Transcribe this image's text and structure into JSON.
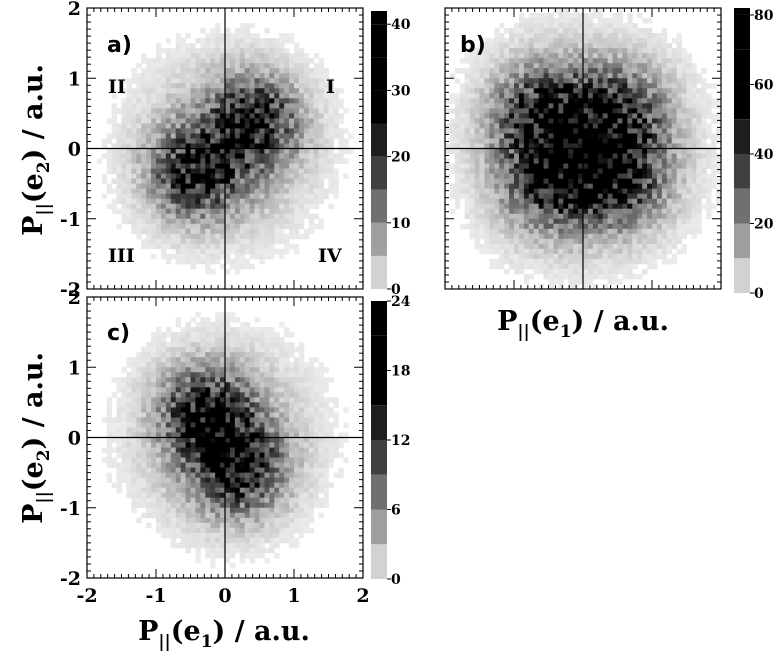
{
  "chart_data": [
    {
      "panel": "a)",
      "type": "heatmap",
      "xlim": [
        -2,
        2
      ],
      "ylim": [
        -2,
        2
      ],
      "x_ticks": [],
      "y_ticks": [
        "-2",
        "-1",
        "0",
        "1",
        "2"
      ],
      "xlabel": "",
      "ylabel": "P||(e2) / a.u.",
      "quadrant_labels": [
        "I",
        "II",
        "III",
        "IV"
      ],
      "colorbar": {
        "range": [
          0,
          42
        ],
        "ticks": [
          "0",
          "10",
          "20",
          "30",
          "40"
        ]
      },
      "peaks": [
        {
          "x": 0.45,
          "y": 0.4,
          "value": 40
        },
        {
          "x": -0.45,
          "y": -0.35,
          "value": 40
        }
      ],
      "distribution_spread": 0.8
    },
    {
      "panel": "b)",
      "type": "heatmap",
      "xlim": [
        -2,
        2
      ],
      "ylim": [
        -2,
        2
      ],
      "x_ticks": [],
      "y_ticks": [],
      "xlabel": "P||(e1) / a.u.",
      "ylabel": "",
      "colorbar": {
        "range": [
          0,
          82
        ],
        "ticks": [
          "0",
          "20",
          "40",
          "60",
          "80"
        ]
      },
      "peaks": [
        {
          "x": -0.6,
          "y": 0.5,
          "value": 75
        },
        {
          "x": 0.5,
          "y": -0.4,
          "value": 75
        },
        {
          "x": 0.5,
          "y": 0.5,
          "value": 65
        },
        {
          "x": -0.5,
          "y": -0.5,
          "value": 65
        }
      ],
      "distribution_spread": 0.9
    },
    {
      "panel": "c)",
      "type": "heatmap",
      "xlim": [
        -2,
        2
      ],
      "ylim": [
        -2,
        2
      ],
      "x_ticks": [
        "-2",
        "-1",
        "0",
        "1",
        "2"
      ],
      "y_ticks": [
        "-2",
        "-1",
        "0",
        "1",
        "2"
      ],
      "xlabel": "P||(e1) / a.u.",
      "ylabel": "P||(e2) / a.u.",
      "colorbar": {
        "range": [
          0,
          24
        ],
        "ticks": [
          "0",
          "6",
          "12",
          "18",
          "24"
        ]
      },
      "peaks": [
        {
          "x": -0.3,
          "y": 0.35,
          "value": 24
        },
        {
          "x": 0.2,
          "y": -0.45,
          "value": 24
        }
      ],
      "distribution_spread": 0.8
    }
  ]
}
